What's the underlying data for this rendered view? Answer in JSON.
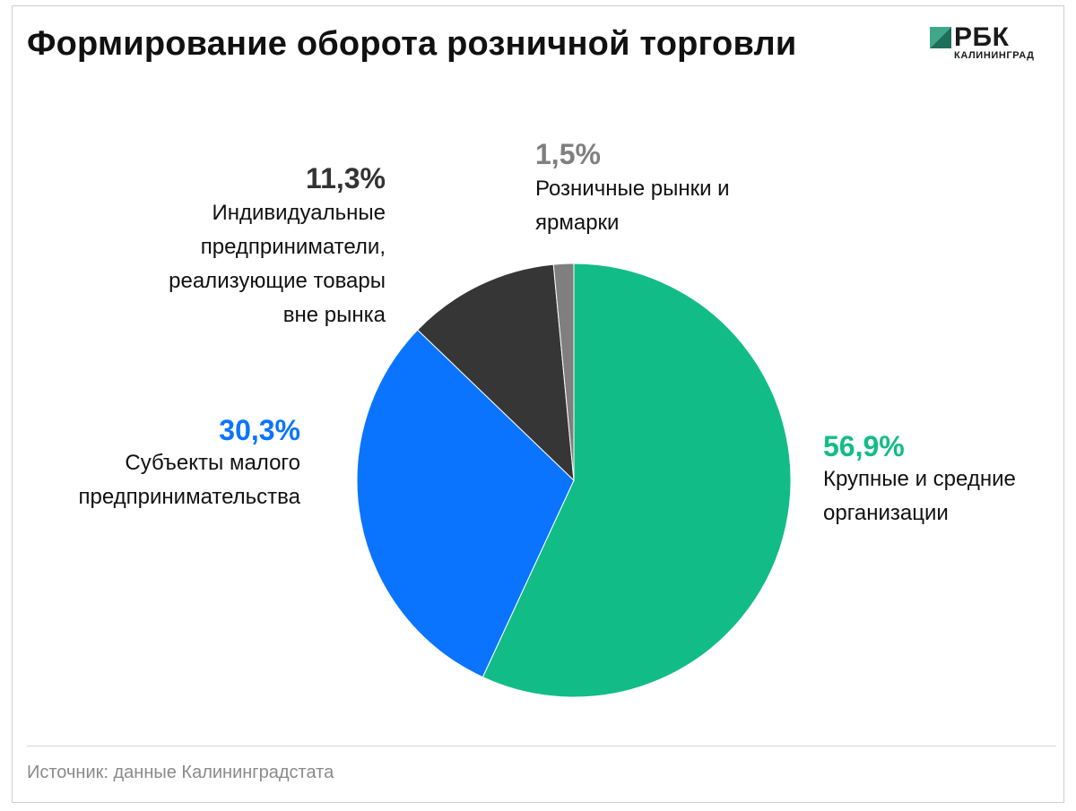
{
  "header": {
    "title": "Формирование оборота розничной торговли"
  },
  "logo": {
    "brand": "РБК",
    "city": "КАЛИНИНГРАД"
  },
  "chart_data": {
    "type": "pie",
    "title": "Формирование оборота розничной торговли",
    "slices": [
      {
        "name": "Крупные и средние организации",
        "value": 56.9,
        "display": "56,9%",
        "color": "#12BC86",
        "label_lines": [
          "Крупные и средние",
          "организации"
        ]
      },
      {
        "name": "Субъекты малого предпринимательства",
        "value": 30.3,
        "display": "30,3%",
        "color": "#0A74FF",
        "label_lines": [
          "Субъекты малого",
          "предпринимательства"
        ]
      },
      {
        "name": "Индивидуальные предприниматели, реализующие товары вне рынка",
        "value": 11.3,
        "display": "11,3%",
        "color": "#363636",
        "label_lines": [
          "Индивидуальные",
          "предприниматели,",
          "реализующие товары",
          "вне рынка"
        ]
      },
      {
        "name": "Розничные рынки и ярмарки",
        "value": 1.5,
        "display": "1,5%",
        "color": "#7F7F7F",
        "label_lines": [
          "Розничные рынки и",
          "ярмарки"
        ]
      }
    ],
    "start_angle": "top",
    "direction": "clockwise"
  },
  "footer": {
    "source": "Источник: данные Калининградстата"
  }
}
